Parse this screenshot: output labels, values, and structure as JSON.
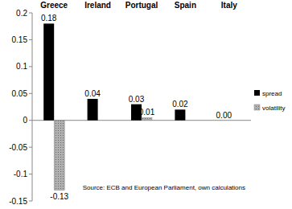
{
  "chart_data": {
    "type": "bar",
    "categories": [
      "Greece",
      "Ireland",
      "Portugal",
      "Spain",
      "Italy"
    ],
    "series": [
      {
        "name": "spread",
        "color": "#000000",
        "values": [
          0.18,
          0.04,
          0.03,
          0.02,
          0.0
        ],
        "value_labels": [
          "0.18",
          "0.04",
          "0.03",
          "0.02",
          "0.00"
        ]
      },
      {
        "name": "volatility",
        "color": "#b0b0b0",
        "values": [
          -0.13,
          null,
          0.005,
          null,
          null
        ],
        "value_labels": [
          "-0.13",
          null,
          "0.01",
          null,
          null
        ]
      }
    ],
    "ylim": [
      -0.15,
      0.2
    ],
    "yticks": [
      -0.15,
      -0.1,
      -0.05,
      0,
      0.05,
      0.1,
      0.15,
      0.2
    ],
    "data_labels": true,
    "legend": "right",
    "grid": false,
    "annotations": [
      "Source: ECB and European Parliament, own calculations"
    ]
  }
}
